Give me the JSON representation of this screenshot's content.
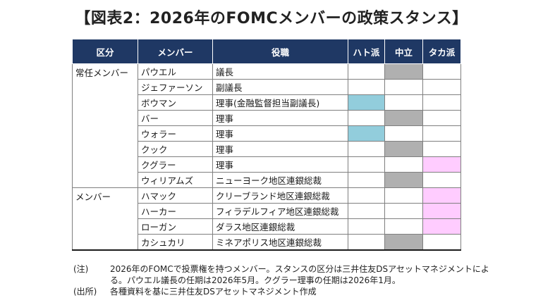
{
  "title": "【図表2：2026年のFOMCメンバーの政策スタンス】",
  "colors": {
    "header_bg": "#1f3864",
    "dove": "#92cddc",
    "neutral": "#b0b0b0",
    "hawk": "#ffccff"
  },
  "headers": {
    "category": "区分",
    "member": "メンバー",
    "role": "役職",
    "dove": "ハト派",
    "neutral": "中立",
    "hawk": "タカ派"
  },
  "rows": [
    {
      "category": "常任メンバー",
      "name": "パウエル",
      "role": "議長",
      "stance": "neutral"
    },
    {
      "category": "",
      "name": "ジェファーソン",
      "role": "副議長",
      "stance": ""
    },
    {
      "category": "",
      "name": "ボウマン",
      "role": "理事(金融監督担当副議長)",
      "stance": "dove"
    },
    {
      "category": "",
      "name": "バー",
      "role": "理事",
      "stance": "neutral"
    },
    {
      "category": "",
      "name": "ウォラー",
      "role": "理事",
      "stance": "dove"
    },
    {
      "category": "",
      "name": "クック",
      "role": "理事",
      "stance": "neutral"
    },
    {
      "category": "",
      "name": "クグラー",
      "role": "理事",
      "stance": "hawk"
    },
    {
      "category": "",
      "name": "ウィリアムズ",
      "role": "ニューヨーク地区連銀総裁",
      "stance": "neutral"
    },
    {
      "category": "メンバー",
      "name": "ハマック",
      "role": "クリーブランド地区連銀総裁",
      "stance": "hawk"
    },
    {
      "category": "",
      "name": "ハーカー",
      "role": "フィラデルフィア地区連銀総裁",
      "stance": "hawk"
    },
    {
      "category": "",
      "name": "ローガン",
      "role": "ダラス地区連銀総裁",
      "stance": "hawk"
    },
    {
      "category": "",
      "name": "カシュカリ",
      "role": "ミネアポリス地区連銀総裁",
      "stance": "neutral"
    }
  ],
  "notes": [
    {
      "label": "(注)",
      "text": "2026年のFOMCで投票権を持つメンバー。スタンスの区分は三井住友DSアセットマネジメントによる。パウエル議長の任期は2026年5月。クグラー理事の任期は2026年1月。"
    },
    {
      "label": "(出所)",
      "text": "各種資料を基に三井住友DSアセットマネジメント作成"
    }
  ]
}
